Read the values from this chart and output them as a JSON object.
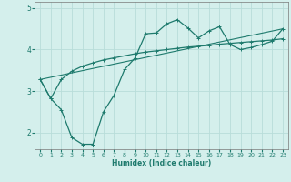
{
  "xlabel": "Humidex (Indice chaleur)",
  "background_color": "#d4efec",
  "grid_color": "#b8ddd9",
  "line_color": "#1e7a6d",
  "xlim": [
    -0.5,
    23.5
  ],
  "ylim": [
    1.6,
    5.15
  ],
  "yticks": [
    2,
    3,
    4,
    5
  ],
  "xticks": [
    0,
    1,
    2,
    3,
    4,
    5,
    6,
    7,
    8,
    9,
    10,
    11,
    12,
    13,
    14,
    15,
    16,
    17,
    18,
    19,
    20,
    21,
    22,
    23
  ],
  "line1_x": [
    0,
    1,
    2,
    3,
    4,
    5,
    6,
    7,
    8,
    9,
    10,
    11,
    12,
    13,
    14,
    15,
    16,
    17,
    18,
    19,
    20,
    21,
    22,
    23
  ],
  "line1_y": [
    3.28,
    2.82,
    3.28,
    3.48,
    3.6,
    3.68,
    3.75,
    3.8,
    3.85,
    3.9,
    3.94,
    3.97,
    4.0,
    4.03,
    4.06,
    4.08,
    4.1,
    4.13,
    4.15,
    4.17,
    4.19,
    4.21,
    4.23,
    4.26
  ],
  "line2_x": [
    0,
    1,
    2,
    3,
    4,
    5,
    6,
    7,
    8,
    9,
    10,
    11,
    12,
    13,
    14,
    15,
    16,
    17,
    18,
    19,
    20,
    21,
    22,
    23
  ],
  "line2_y": [
    3.28,
    2.82,
    2.55,
    1.88,
    1.72,
    1.72,
    2.5,
    2.9,
    3.52,
    3.8,
    4.38,
    4.4,
    4.62,
    4.72,
    4.52,
    4.28,
    4.45,
    4.55,
    4.12,
    4.0,
    4.05,
    4.12,
    4.2,
    4.5
  ],
  "line3_x": [
    0,
    23
  ],
  "line3_y": [
    3.28,
    4.5
  ]
}
